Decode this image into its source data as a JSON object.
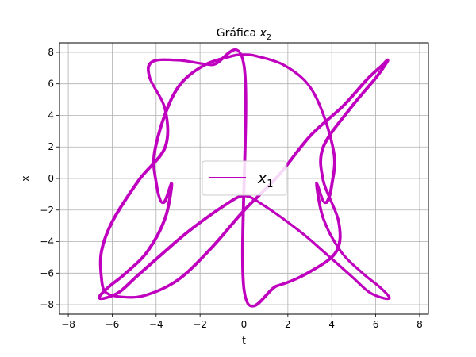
{
  "chart_data": {
    "type": "line",
    "title": "Gráfica x₂",
    "title_prefix": "Gráfica ",
    "title_var": "x",
    "title_sub": "2",
    "xlabel": "t",
    "ylabel": "x",
    "xlim": [
      -8.4,
      8.4
    ],
    "ylim": [
      -8.6,
      8.6
    ],
    "xticks": [
      -8,
      -6,
      -4,
      -2,
      0,
      2,
      4,
      6,
      8
    ],
    "yticks": [
      -8,
      -6,
      -4,
      -2,
      0,
      2,
      4,
      6,
      8
    ],
    "grid": true,
    "legend_position": "center",
    "series": [
      {
        "name": "x₁",
        "legend_var": "x",
        "legend_sub": "1",
        "color": "#bf00bf",
        "closed": true,
        "x": [
          0.0,
          1.5,
          3.0,
          4.2,
          4.3,
          3.6,
          3.6,
          4.8,
          6.0,
          6.5,
          6.5,
          6.3,
          5.6,
          4.5,
          3.0,
          1.5,
          0.0,
          -1.5,
          -3.0,
          -4.5,
          -5.6,
          -6.3,
          -6.5,
          -6.5,
          -6.0,
          -4.8,
          -3.6,
          -3.6,
          -4.3,
          -4.2,
          -3.0,
          -1.5,
          0.0
        ],
        "y": [
          -7.1,
          -6.8,
          -5.9,
          -4.6,
          -2.7,
          -0.1,
          2.0,
          4.4,
          6.4,
          7.4,
          7.5,
          7.2,
          6.3,
          4.6,
          2.7,
          0.1,
          -2.0,
          -4.4,
          -6.4,
          -7.4,
          -7.5,
          -7.2,
          -6.3,
          -4.6,
          -2.7,
          -0.1,
          2.0,
          4.4,
          6.4,
          7.4,
          7.5,
          7.2,
          7.1
        ]
      },
      {
        "name": "",
        "color": "#bf00bf",
        "closed": true,
        "x": [
          0.0,
          0.6,
          1.8,
          2.9,
          3.6,
          4.1,
          4.0,
          3.8,
          3.6,
          3.3,
          3.6,
          4.4,
          5.4,
          6.2,
          6.6,
          6.4,
          5.7,
          4.9,
          3.6,
          2.5,
          0.9,
          0.0,
          -0.9,
          -2.5,
          -3.6,
          -4.9,
          -5.7,
          -6.4,
          -6.6,
          -6.2,
          -5.4,
          -4.4,
          -3.6,
          -3.3,
          -3.6,
          -3.8,
          -4.0,
          -4.1,
          -3.6,
          -2.9,
          -1.8,
          -0.6,
          0.0
        ],
        "y": [
          7.85,
          7.75,
          7.2,
          6.0,
          4.1,
          1.5,
          -0.3,
          -1.4,
          -1.4,
          -0.3,
          -2.5,
          -4.6,
          -6.0,
          -6.9,
          -7.5,
          -7.6,
          -7.2,
          -6.2,
          -4.6,
          -3.3,
          -1.7,
          -1.1,
          -1.7,
          -3.3,
          -4.6,
          -6.2,
          -7.2,
          -7.6,
          -7.5,
          -6.9,
          -6.0,
          -4.6,
          -2.5,
          -0.3,
          -1.4,
          -1.4,
          -0.3,
          1.5,
          4.1,
          6.0,
          7.2,
          7.75,
          7.85
        ]
      }
    ]
  }
}
